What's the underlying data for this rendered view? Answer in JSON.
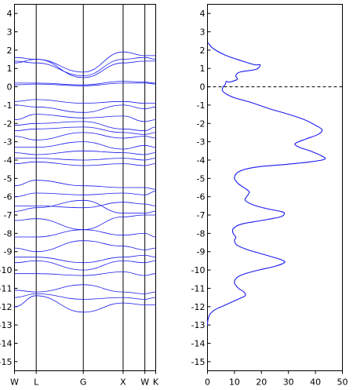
{
  "chart_data": [
    {
      "type": "line",
      "y_range": [
        -15.5,
        4.5
      ],
      "y_ticks": [
        4,
        3,
        2,
        1,
        0,
        -1,
        -2,
        -3,
        -4,
        -5,
        -6,
        -7,
        -8,
        -9,
        -10,
        -11,
        -12,
        -13,
        -14,
        -15
      ],
      "k_points": [
        {
          "label": "W",
          "pos": 0.0
        },
        {
          "label": "L",
          "pos": 0.1538
        },
        {
          "label": "G",
          "pos": 0.4872
        },
        {
          "label": "X",
          "pos": 0.7692
        },
        {
          "label": "W",
          "pos": 0.9231
        },
        {
          "label": "K",
          "pos": 1.0
        }
      ],
      "fermi_level": 0,
      "band_sample_points": {
        "pos": [
          0.0,
          0.1538,
          0.4872,
          0.7692,
          0.9231,
          1.0
        ],
        "bands": [
          [
            1.6,
            1.5,
            0.8,
            1.9,
            1.7,
            1.7
          ],
          [
            1.4,
            1.3,
            0.6,
            1.5,
            1.6,
            1.5
          ],
          [
            1.3,
            1.5,
            0.5,
            1.3,
            1.4,
            1.4
          ],
          [
            0.2,
            0.2,
            0.1,
            0.3,
            0.25,
            0.2
          ],
          [
            0.1,
            0.15,
            0.05,
            0.2,
            0.2,
            0.15
          ],
          [
            -0.8,
            -0.7,
            -0.9,
            -0.8,
            -0.9,
            -0.9
          ],
          [
            -1.0,
            -1.1,
            -1.4,
            -1.0,
            -1.2,
            -1.1
          ],
          [
            -1.8,
            -1.5,
            -1.7,
            -1.6,
            -1.9,
            -1.8
          ],
          [
            -2.1,
            -2.0,
            -1.9,
            -2.3,
            -2.4,
            -2.2
          ],
          [
            -2.4,
            -2.3,
            -2.2,
            -2.5,
            -2.6,
            -2.5
          ],
          [
            -2.7,
            -2.9,
            -2.5,
            -2.8,
            -2.7,
            -2.8
          ],
          [
            -3.3,
            -3.3,
            -3.0,
            -3.4,
            -3.2,
            -3.3
          ],
          [
            -3.6,
            -3.7,
            -3.5,
            -3.6,
            -3.7,
            -3.6
          ],
          [
            -3.9,
            -3.9,
            -4.0,
            -3.9,
            -4.0,
            -3.9
          ],
          [
            -4.2,
            -4.1,
            -4.3,
            -4.2,
            -4.3,
            -4.2
          ],
          [
            -5.4,
            -5.1,
            -5.4,
            -5.5,
            -5.5,
            -5.6
          ],
          [
            -6.0,
            -5.8,
            -5.9,
            -5.8,
            -5.9,
            -5.7
          ],
          [
            -6.5,
            -6.5,
            -6.6,
            -6.3,
            -6.4,
            -6.5
          ],
          [
            -6.8,
            -6.6,
            -6.2,
            -6.9,
            -6.9,
            -6.8
          ],
          [
            -7.3,
            -7.2,
            -7.8,
            -7.1,
            -7.0,
            -7.0
          ],
          [
            -8.2,
            -8.2,
            -7.8,
            -8.1,
            -8.0,
            -8.2
          ],
          [
            -8.8,
            -9.0,
            -8.4,
            -8.7,
            -8.9,
            -8.8
          ],
          [
            -9.3,
            -9.3,
            -9.6,
            -9.3,
            -9.2,
            -9.3
          ],
          [
            -9.6,
            -9.5,
            -10.0,
            -9.5,
            -9.6,
            -9.5
          ],
          [
            -10.2,
            -10.2,
            -10.3,
            -10.1,
            -10.3,
            -10.2
          ],
          [
            -11.1,
            -11.2,
            -10.8,
            -11.2,
            -11.3,
            -11.2
          ],
          [
            -11.5,
            -11.3,
            -11.6,
            -11.5,
            -11.6,
            -11.5
          ],
          [
            -12.0,
            -11.4,
            -12.3,
            -11.8,
            -11.9,
            -11.9
          ]
        ]
      }
    },
    {
      "type": "line",
      "x_range": [
        0,
        50
      ],
      "x_ticks": [
        0,
        10,
        20,
        30,
        40,
        50
      ],
      "y_range": [
        -15.5,
        4.5
      ],
      "y_ticks": [
        4,
        3,
        2,
        1,
        0,
        -1,
        -2,
        -3,
        -4,
        -5,
        -6,
        -7,
        -8,
        -9,
        -10,
        -11,
        -12,
        -13,
        -14,
        -15
      ],
      "fermi_level": 0,
      "series": [
        {
          "points": [
            [
              0.3,
              2.4
            ],
            [
              2.0,
              2.1
            ],
            [
              7.0,
              1.7
            ],
            [
              13.0,
              1.4
            ],
            [
              17.5,
              1.2
            ],
            [
              19.5,
              1.2
            ],
            [
              18.0,
              0.95
            ],
            [
              12.0,
              0.8
            ],
            [
              10.5,
              0.6
            ],
            [
              11.0,
              0.4
            ],
            [
              8.0,
              0.25
            ],
            [
              7.0,
              0.3
            ],
            [
              6.5,
              0.1
            ],
            [
              5.8,
              0.0
            ],
            [
              5.5,
              -0.2
            ],
            [
              7.0,
              -0.4
            ],
            [
              10.0,
              -0.6
            ],
            [
              16.0,
              -0.85
            ],
            [
              23.0,
              -1.2
            ],
            [
              30.0,
              -1.5
            ],
            [
              36.0,
              -1.8
            ],
            [
              40.0,
              -2.1
            ],
            [
              42.5,
              -2.35
            ],
            [
              41.0,
              -2.6
            ],
            [
              36.5,
              -2.85
            ],
            [
              32.5,
              -3.1
            ],
            [
              34.0,
              -3.3
            ],
            [
              38.0,
              -3.5
            ],
            [
              42.0,
              -3.75
            ],
            [
              43.5,
              -3.95
            ],
            [
              38.0,
              -4.1
            ],
            [
              28.0,
              -4.25
            ],
            [
              20.0,
              -4.35
            ],
            [
              14.0,
              -4.5
            ],
            [
              11.0,
              -4.7
            ],
            [
              10.0,
              -5.0
            ],
            [
              11.5,
              -5.3
            ],
            [
              14.0,
              -5.55
            ],
            [
              15.5,
              -5.75
            ],
            [
              14.5,
              -6.0
            ],
            [
              14.0,
              -6.2
            ],
            [
              17.0,
              -6.45
            ],
            [
              22.0,
              -6.65
            ],
            [
              27.0,
              -6.8
            ],
            [
              28.5,
              -6.9
            ],
            [
              27.0,
              -7.1
            ],
            [
              20.0,
              -7.3
            ],
            [
              12.5,
              -7.5
            ],
            [
              9.5,
              -7.75
            ],
            [
              9.5,
              -8.0
            ],
            [
              10.5,
              -8.2
            ],
            [
              10.0,
              -8.4
            ],
            [
              11.0,
              -8.65
            ],
            [
              15.0,
              -8.9
            ],
            [
              22.0,
              -9.2
            ],
            [
              27.5,
              -9.45
            ],
            [
              28.5,
              -9.6
            ],
            [
              25.0,
              -9.8
            ],
            [
              19.0,
              -10.0
            ],
            [
              14.0,
              -10.2
            ],
            [
              11.0,
              -10.4
            ],
            [
              10.0,
              -10.7
            ],
            [
              11.5,
              -11.0
            ],
            [
              13.5,
              -11.2
            ],
            [
              14.0,
              -11.4
            ],
            [
              12.0,
              -11.55
            ],
            [
              9.0,
              -11.75
            ],
            [
              6.0,
              -11.95
            ],
            [
              3.0,
              -12.15
            ],
            [
              1.0,
              -12.4
            ],
            [
              0.2,
              -12.7
            ],
            [
              0.0,
              -13.0
            ]
          ]
        }
      ]
    }
  ]
}
